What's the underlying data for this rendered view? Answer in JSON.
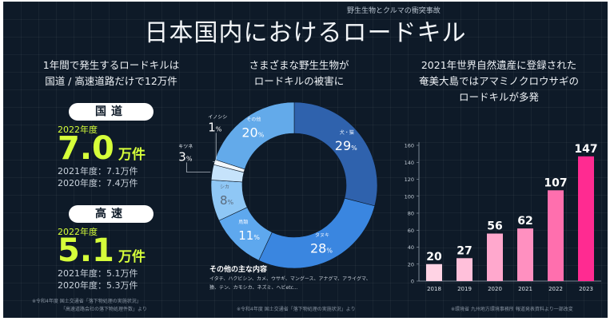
{
  "header": {
    "series_label": "野生生物とクルマの衝突事故",
    "title": "日本国内におけるロードキル"
  },
  "left": {
    "heading_line1": "1年間で発生するロードキルは",
    "heading_line2": "国道 / 高速道路だけで12万件",
    "national": {
      "pill": "国道",
      "year_label": "2022年度",
      "value": "7.0",
      "unit": "万件",
      "line1": "2021年度：7.1万件",
      "line2": "2020年度：7.4万件"
    },
    "highway": {
      "pill": "高速",
      "year_label": "2022年度",
      "value": "5.1",
      "unit": "万件",
      "line1": "2021年度：5.1万件",
      "line2": "2020年度：5.3万件"
    },
    "note1": "※令和4年度 国土交通省「落下物処理の実施状況」",
    "note2": "「高速道路会社の落下物処理件数」より"
  },
  "middle": {
    "heading_line1": "さまざまな野生生物が",
    "heading_line2": "ロードキルの被害に",
    "others_title": "その他の主な内容",
    "others_line1": "イタチ、ハクビシン、カメ、ウサギ、マングース、アナグマ、アライグマ、",
    "others_line2": "猿、テン、カモシカ、ネズミ、ヘビetc...",
    "note": "※令和4年度 国土交通省「落下物処理の実施状況」より"
  },
  "right": {
    "heading_line1": "2021年世界自然遺産に登録された",
    "heading_line2": "奄美大島ではアマミノクロウサギの",
    "heading_line3": "ロードキルが多発",
    "note": "※環境省 九州地方環境事務所 報道発表資料より一部改変"
  },
  "chart_data": [
    {
      "type": "pie",
      "style": "donut",
      "slices": [
        {
          "label": "犬・猫",
          "value": 29
        },
        {
          "label": "タヌキ",
          "value": 28
        },
        {
          "label": "鳥類",
          "value": 11
        },
        {
          "label": "シカ",
          "value": 8
        },
        {
          "label": "キツネ",
          "value": 3
        },
        {
          "label": "イノシシ",
          "value": 1
        },
        {
          "label": "その他",
          "value": 20
        }
      ],
      "colors": [
        "#2f62ad",
        "#3a86e0",
        "#5ea8ee",
        "#8fc7f5",
        "#c6e3fb",
        "#f3f8fd",
        "#63aaea"
      ]
    },
    {
      "type": "bar",
      "categories": [
        "2018",
        "2019",
        "2020",
        "2021",
        "2022",
        "2023"
      ],
      "values": [
        20,
        27,
        56,
        62,
        107,
        147
      ],
      "ylim": [
        0,
        160
      ],
      "yticks": [
        0,
        20,
        40,
        60,
        80,
        100,
        120,
        140,
        160
      ],
      "grid": false,
      "colors": [
        "#ffd3e4",
        "#ffc0da",
        "#ffa8cd",
        "#ff90c0",
        "#ff6fae",
        "#ff2b91"
      ]
    }
  ]
}
